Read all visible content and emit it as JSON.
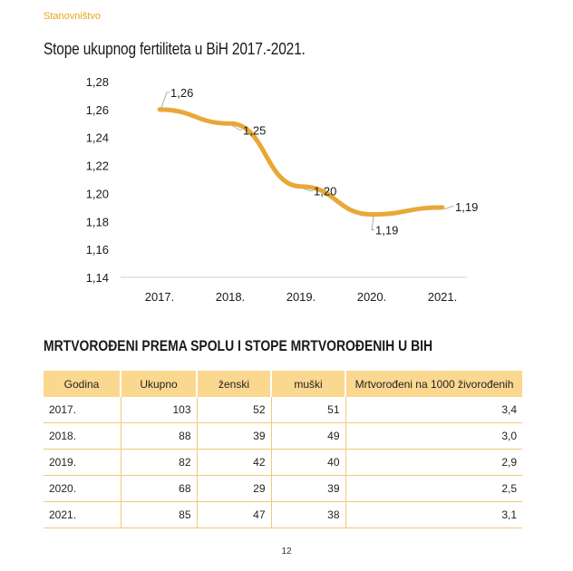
{
  "header": {
    "section_label": "Stanovništvo"
  },
  "chart": {
    "title": "Stope ukupnog fertiliteta u BiH 2017.-2021."
  },
  "chart_data": {
    "type": "line",
    "categories": [
      "2017.",
      "2018.",
      "2019.",
      "2020.",
      "2021."
    ],
    "values": [
      1.26,
      1.25,
      1.205,
      1.185,
      1.19
    ],
    "data_labels": [
      "1,26",
      "1,25",
      "1,20",
      "1,19",
      "1,19"
    ],
    "ylim": [
      1.14,
      1.28
    ],
    "yticks": [
      "1,14",
      "1,16",
      "1,18",
      "1,20",
      "1,22",
      "1,24",
      "1,26",
      "1,28"
    ],
    "grid": false,
    "line_color": "#e8a838"
  },
  "table": {
    "title": "MRTVOROĐENI PREMA SPOLU I STOPE MRTVOROĐENIH U BIH",
    "headers": [
      "Godina",
      "Ukupno",
      "ženski",
      "muški",
      "Mrtvorođeni na 1000 živorođenih"
    ],
    "rows": [
      [
        "2017.",
        "103",
        "52",
        "51",
        "3,4"
      ],
      [
        "2018.",
        "88",
        "39",
        "49",
        "3,0"
      ],
      [
        "2019.",
        "82",
        "42",
        "40",
        "2,9"
      ],
      [
        "2020.",
        "68",
        "29",
        "39",
        "2,5"
      ],
      [
        "2021.",
        "85",
        "47",
        "38",
        "3,1"
      ]
    ]
  },
  "footer": {
    "page_number": "12"
  }
}
